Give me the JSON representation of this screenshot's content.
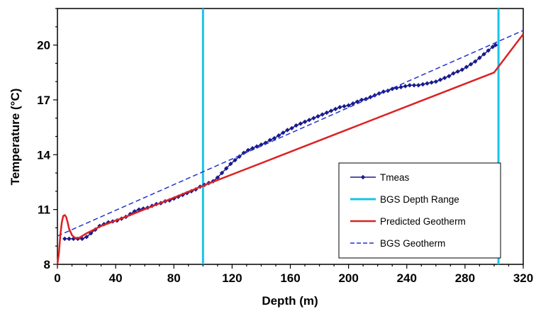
{
  "chart_data": {
    "type": "line",
    "title": "",
    "xlabel": "Depth (m)",
    "ylabel": "Temperature (°C)",
    "xlim": [
      0,
      320
    ],
    "ylim": [
      8,
      22
    ],
    "x_ticks": [
      0,
      40,
      80,
      120,
      160,
      200,
      240,
      280,
      320
    ],
    "y_ticks": [
      8,
      11,
      14,
      17,
      20
    ],
    "x_minor_step": 10,
    "y_minor_step": 1,
    "grid": false,
    "legend_position": "bottom-right",
    "series": [
      {
        "name": "Tmeas",
        "style": "line-with-diamond-markers",
        "color": "#1a1a8c",
        "x": [
          5,
          8,
          11,
          14,
          17,
          20,
          23,
          26,
          29,
          32,
          35,
          38,
          41,
          44,
          47,
          50,
          53,
          56,
          59,
          62,
          65,
          68,
          71,
          74,
          77,
          80,
          83,
          86,
          89,
          92,
          95,
          98,
          101,
          104,
          107,
          110,
          113,
          116,
          119,
          122,
          125,
          128,
          131,
          134,
          137,
          140,
          143,
          146,
          149,
          152,
          155,
          158,
          161,
          164,
          167,
          170,
          173,
          176,
          179,
          182,
          185,
          188,
          191,
          194,
          197,
          200,
          203,
          206,
          209,
          212,
          215,
          218,
          221,
          224,
          227,
          230,
          233,
          236,
          239,
          242,
          245,
          248,
          251,
          254,
          257,
          260,
          263,
          266,
          269,
          272,
          275,
          278,
          281,
          284,
          287,
          290,
          293,
          296,
          299,
          301
        ],
        "y": [
          9.4,
          9.4,
          9.4,
          9.4,
          9.4,
          9.5,
          9.7,
          9.9,
          10.1,
          10.2,
          10.3,
          10.35,
          10.4,
          10.5,
          10.6,
          10.75,
          10.9,
          11.0,
          11.05,
          11.1,
          11.2,
          11.3,
          11.35,
          11.45,
          11.5,
          11.6,
          11.7,
          11.8,
          11.9,
          12.0,
          12.1,
          12.25,
          12.35,
          12.45,
          12.55,
          12.75,
          13.0,
          13.25,
          13.5,
          13.7,
          13.9,
          14.1,
          14.25,
          14.35,
          14.45,
          14.55,
          14.65,
          14.8,
          14.9,
          15.05,
          15.2,
          15.35,
          15.45,
          15.6,
          15.7,
          15.8,
          15.9,
          16.0,
          16.1,
          16.2,
          16.3,
          16.4,
          16.5,
          16.6,
          16.65,
          16.7,
          16.8,
          16.9,
          17.0,
          17.05,
          17.15,
          17.25,
          17.35,
          17.45,
          17.5,
          17.6,
          17.65,
          17.7,
          17.75,
          17.8,
          17.8,
          17.8,
          17.85,
          17.9,
          17.95,
          18.0,
          18.1,
          18.2,
          18.3,
          18.45,
          18.55,
          18.65,
          18.8,
          18.95,
          19.1,
          19.3,
          19.5,
          19.7,
          19.9,
          20.0
        ]
      },
      {
        "name": "BGS Depth Range",
        "style": "vertical-lines",
        "color": "#19c3e6",
        "x": [
          100,
          303
        ]
      },
      {
        "name": "Predicted Geotherm",
        "style": "solid",
        "color": "#dd2222",
        "x": [
          0,
          1,
          2,
          3,
          4,
          5,
          6,
          7,
          8,
          10,
          12,
          15,
          20,
          30,
          50,
          80,
          100,
          150,
          200,
          250,
          300,
          320
        ],
        "y": [
          8.0,
          8.6,
          9.6,
          10.3,
          10.65,
          10.7,
          10.6,
          10.3,
          9.95,
          9.6,
          9.45,
          9.45,
          9.7,
          10.1,
          10.7,
          11.65,
          12.3,
          13.85,
          15.4,
          16.95,
          18.5,
          20.6
        ]
      },
      {
        "name": "BGS Geotherm",
        "style": "dashed",
        "color": "#2233cc",
        "x": [
          0,
          320
        ],
        "y": [
          9.55,
          20.8
        ]
      }
    ]
  }
}
